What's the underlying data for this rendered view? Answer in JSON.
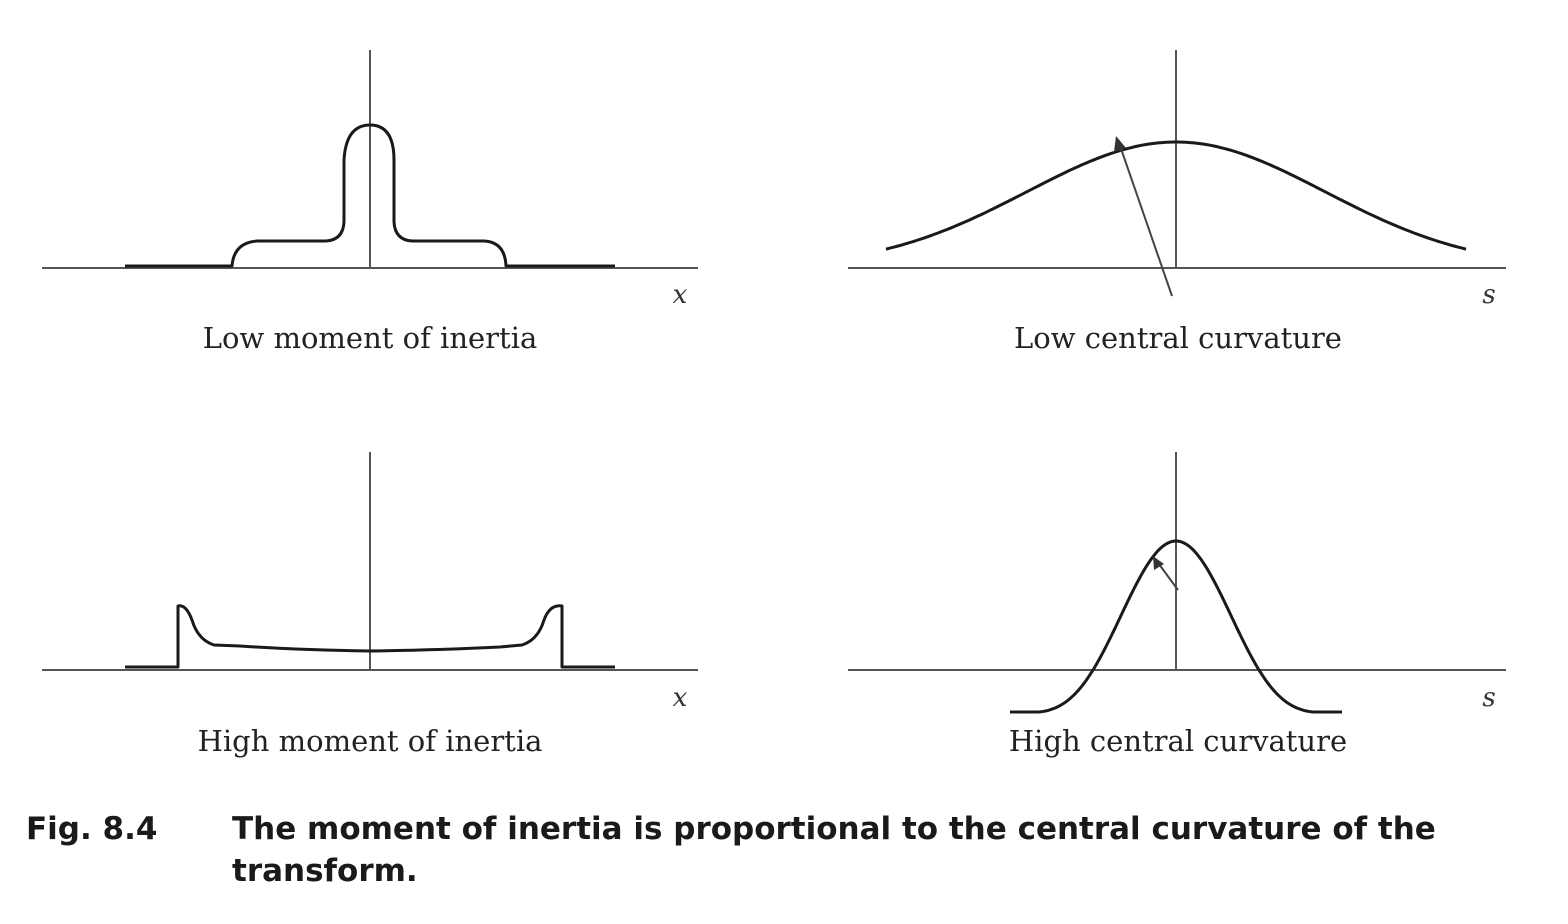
{
  "panels": [
    {
      "axis_var": "x",
      "caption": "Low moment of inertia"
    },
    {
      "axis_var": "s",
      "caption": "Low central curvature"
    },
    {
      "axis_var": "x",
      "caption": "High moment of inertia"
    },
    {
      "axis_var": "s",
      "caption": "High central curvature"
    }
  ],
  "figure": {
    "label": "Fig. 8.4",
    "caption": "The moment of inertia is proportional to the central curvature of the transform."
  }
}
